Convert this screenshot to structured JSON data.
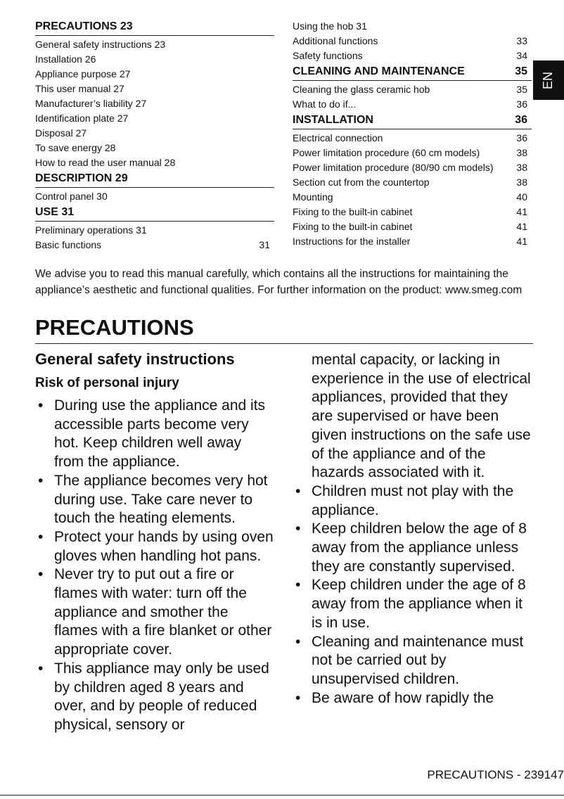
{
  "toc": {
    "left": [
      {
        "heading": "PRECAUTIONS 23",
        "items": [
          {
            "text": "General safety instructions 23"
          },
          {
            "text": "Installation 26"
          },
          {
            "text": "Appliance purpose 27"
          },
          {
            "text": "This user manual 27"
          },
          {
            "text": "Manufacturer’s liability 27"
          },
          {
            "text": "Identification plate 27"
          },
          {
            "text": "Disposal 27"
          },
          {
            "text": "To save energy 28"
          },
          {
            "text": "How to read the user manual 28"
          }
        ]
      },
      {
        "heading": "DESCRIPTION 29",
        "items": [
          {
            "text": "Control panel 30"
          }
        ]
      },
      {
        "heading": "USE 31",
        "items": [
          {
            "text": "Preliminary operations 31"
          },
          {
            "text": "Basic functions",
            "page": "31"
          }
        ]
      }
    ],
    "right": [
      {
        "items": [
          {
            "text": "Using the hob 31"
          },
          {
            "text": "Additional functions",
            "page": "33"
          },
          {
            "text": "Safety functions",
            "page": "34"
          }
        ]
      },
      {
        "heading": "CLEANING AND MAINTENANCE",
        "page": "35",
        "items": [
          {
            "text": "Cleaning the glass ceramic hob",
            "page": "35"
          },
          {
            "text": "What to do if...",
            "page": "36"
          }
        ]
      },
      {
        "heading": "INSTALLATION",
        "page": "36",
        "items": [
          {
            "text": "Electrical connection",
            "page": "36"
          },
          {
            "text": "Power limitation procedure (60 cm models)",
            "page": "38"
          },
          {
            "text": "Power limitation procedure (80/90 cm models)",
            "page": "38"
          },
          {
            "text": "Section cut from the countertop",
            "page": "38"
          },
          {
            "text": "Mounting",
            "page": "40"
          },
          {
            "text": "Fixing to the built-in cabinet",
            "page": "41"
          },
          {
            "text": "Fixing to the built-in cabinet",
            "page": "41"
          },
          {
            "text": "Instructions for the installer",
            "page": "41"
          }
        ]
      }
    ]
  },
  "language_tab": "EN",
  "intro": "We advise you to read this manual carefully, which contains all the instructions for maintaining the appliance’s aesthetic and functional qualities. For further information on the product: www.smeg.com",
  "section": {
    "title": "PRECAUTIONS",
    "subtitle": "General safety instructions",
    "subheading": "Risk of personal injury",
    "left_bullets": [
      "During use the appliance and its accessible parts become very hot. Keep children well away from the appliance.",
      "The appliance becomes very hot during use. Take care never to touch the heating elements.",
      "Protect your hands by using oven gloves when handling hot pans.",
      "Never try to put out a fire or flames with water: turn off the appliance and smother the flames with a fire blanket or other appropriate cover.",
      "This appliance may only be used by children aged 8 years and over, and by people of reduced physical, sensory or"
    ],
    "right_continuation": "mental capacity, or lacking in experience in the use of electrical appliances, provided that they are supervised or have been given instructions on the safe use of the appliance and of the hazards associated with it.",
    "right_bullets": [
      "Children must not play with the appliance.",
      "Keep children below the age of 8 away from the appliance unless they are constantly supervised.",
      "Keep children under the age of 8 away from the appliance when it is in use.",
      "Cleaning and maintenance must not be carried out by unsupervised children.",
      "Be aware of how rapidly the"
    ]
  },
  "footer": "PRECAUTIONS  -  239147"
}
